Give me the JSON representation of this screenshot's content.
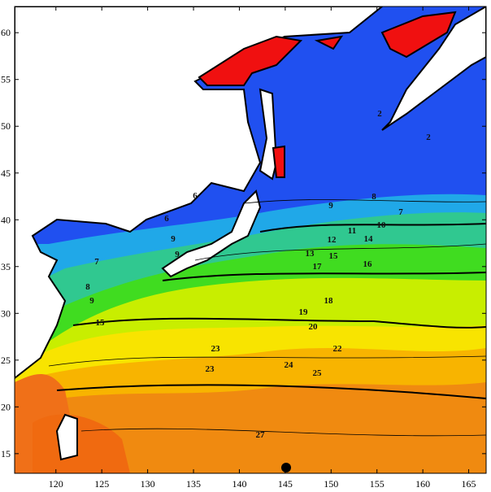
{
  "map": {
    "xlim": [
      115.5,
      166.9
    ],
    "ylim": [
      12.9,
      62.8
    ],
    "xticks": [
      120,
      125,
      130,
      135,
      140,
      145,
      150,
      155,
      160,
      165
    ],
    "yticks": [
      15,
      20,
      25,
      30,
      35,
      40,
      45,
      50,
      55,
      60
    ],
    "contour_labels": [
      2,
      2,
      6,
      6,
      7,
      8,
      9,
      10,
      11,
      12,
      13,
      14,
      15,
      16,
      17,
      18,
      19,
      20,
      22,
      23,
      23,
      24,
      25,
      27,
      9,
      9,
      8,
      9,
      7,
      15
    ]
  }
}
